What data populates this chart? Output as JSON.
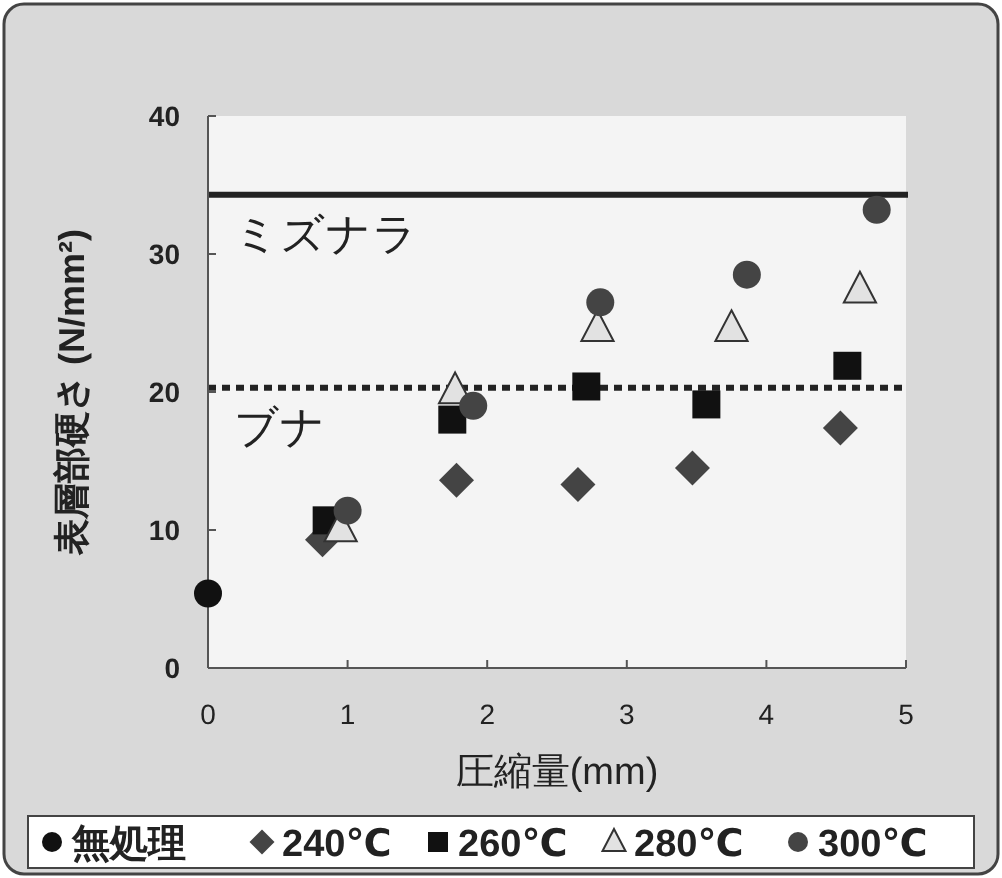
{
  "chart_data": {
    "type": "scatter",
    "xlabel": "圧縮量(mm)",
    "ylabel": "表層部硬さ (N/mm²)",
    "xlim": [
      0,
      5
    ],
    "xticks": [
      0,
      1,
      2,
      3,
      4,
      5
    ],
    "ylim": [
      0,
      40
    ],
    "yticks": [
      0,
      10,
      20,
      30,
      40
    ],
    "grid": false,
    "legend": "bottom",
    "ref_lines": [
      {
        "axis": "y",
        "value": 34.3,
        "label": "ミズナラ",
        "color": "#222222",
        "line_style": "solid"
      },
      {
        "axis": "y",
        "value": 20.3,
        "label": "ブナ",
        "color": "#222222",
        "line_style": "dotted"
      }
    ],
    "series": [
      {
        "name": "無処理",
        "color": "#111111",
        "marker": "circle",
        "x": [
          0
        ],
        "values": [
          5.4
        ]
      },
      {
        "name": "240℃",
        "color": "#444444",
        "marker": "diamond",
        "x": [
          0.82,
          1.78,
          2.65,
          3.47,
          4.53
        ],
        "values": [
          9.3,
          13.6,
          13.3,
          14.5,
          17.4
        ]
      },
      {
        "name": "260℃",
        "color": "#111111",
        "marker": "square",
        "x": [
          0.85,
          1.75,
          2.71,
          3.57,
          4.58
        ],
        "values": [
          10.7,
          18.0,
          20.4,
          19.1,
          21.9
        ]
      },
      {
        "name": "280℃",
        "color": "#e2e2e2",
        "marker": "triangle",
        "x": [
          0.95,
          1.77,
          2.79,
          3.75,
          4.67
        ],
        "values": [
          10.1,
          20.1,
          24.6,
          24.6,
          27.4
        ]
      },
      {
        "name": "300℃",
        "color": "#444444",
        "marker": "circle",
        "x": [
          1.0,
          1.9,
          2.81,
          3.86,
          4.79
        ],
        "values": [
          11.4,
          19.0,
          26.5,
          28.5,
          33.2
        ]
      }
    ]
  }
}
